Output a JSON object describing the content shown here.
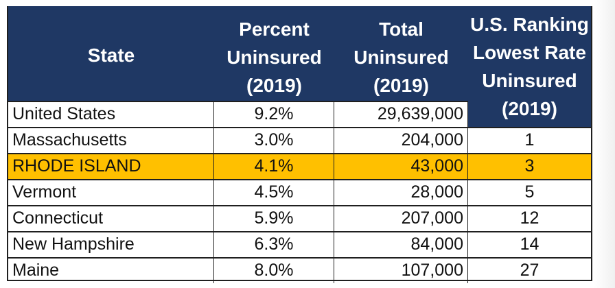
{
  "headers": {
    "state": "State",
    "percent": [
      "Percent",
      "Uninsured",
      "(2019)"
    ],
    "total": [
      "Total",
      "Uninsured",
      "(2019)"
    ],
    "ranking": [
      "U.S. Ranking",
      "Lowest Rate",
      "Uninsured",
      "(2019)"
    ]
  },
  "rows": [
    {
      "state": "United States",
      "percent": "9.2%",
      "total": "29,639,000",
      "rank": ""
    },
    {
      "state": "Massachusetts",
      "percent": "3.0%",
      "total": "204,000",
      "rank": "1"
    },
    {
      "state": "RHODE ISLAND",
      "percent": "4.1%",
      "total": "43,000",
      "rank": "3"
    },
    {
      "state": "Vermont",
      "percent": "4.5%",
      "total": "28,000",
      "rank": "5"
    },
    {
      "state": "Connecticut",
      "percent": "5.9%",
      "total": "207,000",
      "rank": "12"
    },
    {
      "state": "New Hampshire",
      "percent": "6.3%",
      "total": "84,000",
      "rank": "14"
    },
    {
      "state": "Maine",
      "percent": "8.0%",
      "total": "107,000",
      "rank": "27"
    }
  ],
  "colors": {
    "header_bg": "#1f3864",
    "header_text": "#ffffff",
    "highlight_bg": "#ffc000",
    "border": "#1f1f1f"
  }
}
